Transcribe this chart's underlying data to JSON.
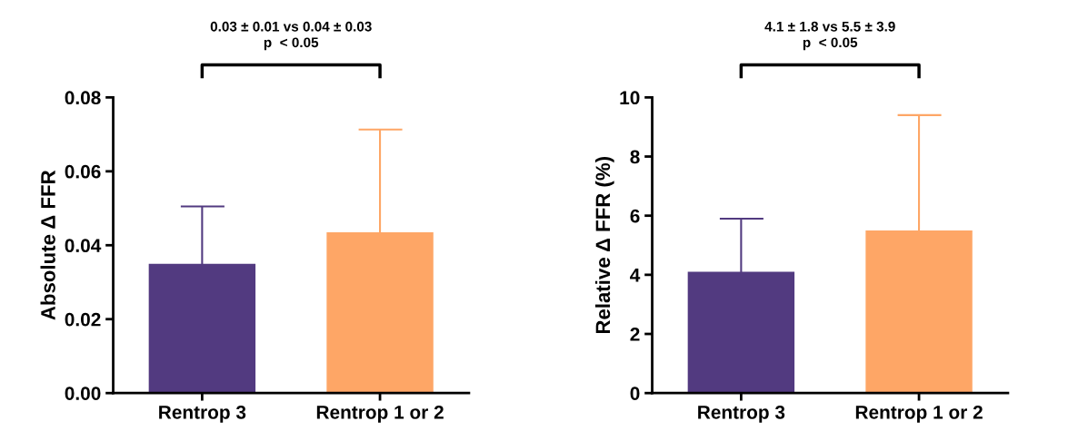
{
  "chart_data": [
    {
      "type": "bar",
      "ylabel": "Absolute Δ FFR",
      "categories": [
        "Rentrop 3",
        "Rentrop 1 or 2"
      ],
      "values": [
        0.035,
        0.0435
      ],
      "colors": [
        "#523a80",
        "#fea666"
      ],
      "errors": [
        [
          0.035,
          0.0505
        ],
        [
          0.0435,
          0.0713
        ]
      ],
      "ylim": [
        0,
        0.08
      ],
      "yticks": [
        {
          "value": 0,
          "label": "0.00"
        },
        {
          "value": 0.02,
          "label": "0.02"
        },
        {
          "value": 0.04,
          "label": "0.04"
        },
        {
          "value": 0.06,
          "label": "0.06"
        },
        {
          "value": 0.08,
          "label": "0.08"
        }
      ],
      "annotations": [
        "0.03 ± 0.01 vs 0.04 ± 0.03\np  < 0.05"
      ],
      "grid": false,
      "legend": false
    },
    {
      "type": "bar",
      "ylabel": "Relative Δ FFR (%)",
      "categories": [
        "Rentrop 3",
        "Rentrop 1 or 2"
      ],
      "values": [
        4.1,
        5.5
      ],
      "colors": [
        "#523a80",
        "#fea666"
      ],
      "errors": [
        [
          4.1,
          5.9
        ],
        [
          5.5,
          9.4
        ]
      ],
      "ylim": [
        0,
        10
      ],
      "yticks": [
        0,
        2,
        4,
        6,
        8,
        10
      ],
      "annotations": [
        "4.1 ± 1.8 vs 5.5 ± 3.9\np  < 0.05"
      ],
      "grid": false,
      "legend": false
    }
  ]
}
